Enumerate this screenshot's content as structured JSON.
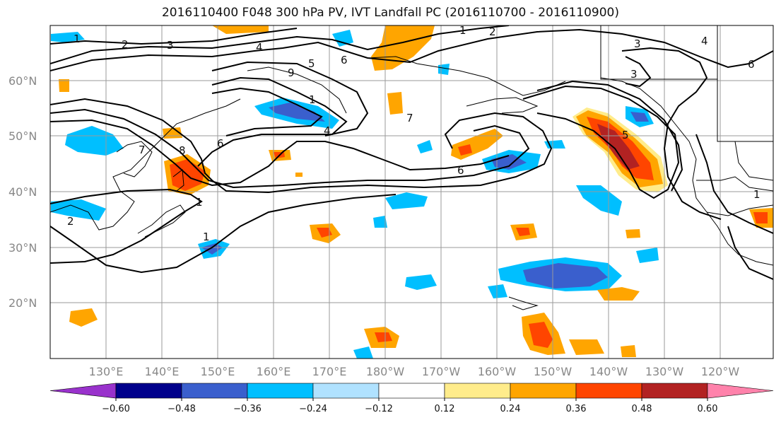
{
  "title": "2016110400 F048 300 hPa PV, IVT Landfall PC (2016110700 - 2016110900)",
  "lat_labels": [
    "60°N",
    "50°N",
    "40°N",
    "30°N",
    "20°N"
  ],
  "lon_labels": [
    "130°E",
    "140°E",
    "150°E",
    "160°E",
    "170°E",
    "180°W",
    "170°W",
    "160°W",
    "150°W",
    "140°W",
    "130°W",
    "120°W"
  ],
  "colorbar": {
    "colors": [
      "#9932cc",
      "#00008b",
      "#3a5fcd",
      "#00bfff",
      "#b0e2ff",
      "#ffffff",
      "#ffec8b",
      "#ffa500",
      "#ff4500",
      "#b22222",
      "#ff82ab"
    ],
    "ticks": [
      "−0.60",
      "−0.48",
      "−0.36",
      "−0.24",
      "−0.12",
      "0.12",
      "0.24",
      "0.36",
      "0.48",
      "0.60"
    ]
  },
  "contour_labels": [
    "1",
    "2",
    "3",
    "4",
    "5",
    "6",
    "7",
    "8",
    "9"
  ],
  "shading_colors": {
    "neg_strong": "#3a5fcd",
    "neg_mid": "#00bfff",
    "neg_weak": "#b0e2ff",
    "pos_weak": "#ffec8b",
    "pos_mid": "#ffa500",
    "pos_strong": "#ff4500",
    "pos_vstrong": "#b22222"
  }
}
